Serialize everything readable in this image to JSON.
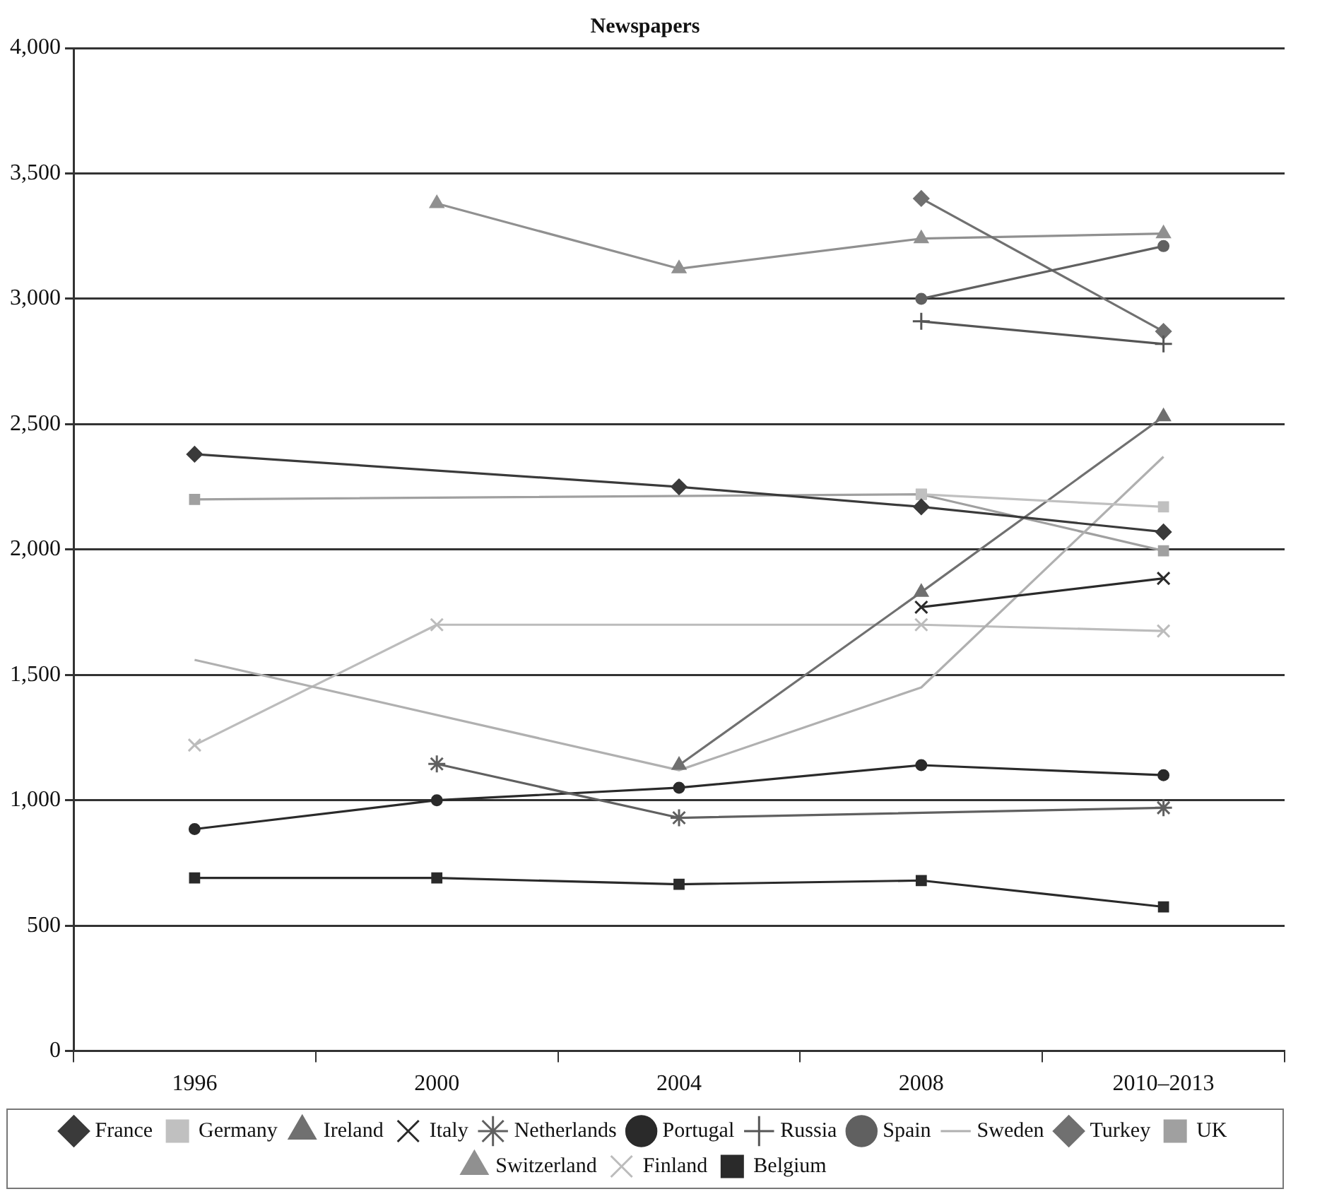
{
  "chart_data": {
    "type": "line",
    "title": "Newspapers",
    "categories": [
      "1996",
      "2000",
      "2004",
      "2008",
      "2010–2013"
    ],
    "ylim": [
      0,
      4000
    ],
    "yticks": [
      {
        "value": 0,
        "label": "0"
      },
      {
        "value": 500,
        "label": "500"
      },
      {
        "value": 1000,
        "label": "1,000"
      },
      {
        "value": 1500,
        "label": "1,500"
      },
      {
        "value": 2000,
        "label": "2,000"
      },
      {
        "value": 2500,
        "label": "2,500"
      },
      {
        "value": 3000,
        "label": "3,000"
      },
      {
        "value": 3500,
        "label": "3,500"
      },
      {
        "value": 4000,
        "label": "4,000"
      }
    ],
    "grid": "y",
    "legend": "bottom",
    "series": [
      {
        "name": "France",
        "color": "#3a3a3a",
        "marker": "diamond",
        "values": [
          2380,
          null,
          2250,
          2170,
          2070
        ]
      },
      {
        "name": "Germany",
        "color": "#c0c0c0",
        "marker": "square",
        "values": [
          null,
          null,
          null,
          2220,
          2170
        ]
      },
      {
        "name": "Ireland",
        "color": "#707070",
        "marker": "triangle",
        "values": [
          null,
          null,
          1140,
          1830,
          2530
        ]
      },
      {
        "name": "Italy",
        "color": "#2a2a2a",
        "marker": "x",
        "values": [
          null,
          null,
          null,
          1770,
          1885
        ]
      },
      {
        "name": "Netherlands",
        "color": "#606060",
        "marker": "cross",
        "values": [
          null,
          1145,
          930,
          null,
          970
        ]
      },
      {
        "name": "Portugal",
        "color": "#2a2a2a",
        "marker": "circle",
        "values": [
          885,
          1000,
          1050,
          1140,
          1100
        ]
      },
      {
        "name": "Russia",
        "color": "#555555",
        "marker": "plus",
        "values": [
          null,
          null,
          null,
          2910,
          2820
        ]
      },
      {
        "name": "Spain",
        "color": "#606060",
        "marker": "circle",
        "values": [
          null,
          null,
          null,
          3000,
          3210
        ]
      },
      {
        "name": "Sweden",
        "color": "#b0b0b0",
        "marker": "none",
        "values": [
          1560,
          null,
          1120,
          1450,
          2370
        ]
      },
      {
        "name": "Turkey",
        "color": "#707070",
        "marker": "diamond",
        "values": [
          null,
          null,
          null,
          3400,
          2870
        ]
      },
      {
        "name": "UK",
        "color": "#a0a0a0",
        "marker": "square",
        "values": [
          2200,
          null,
          null,
          2220,
          1995
        ]
      },
      {
        "name": "Switzerland",
        "color": "#909090",
        "marker": "triangle",
        "values": [
          null,
          3380,
          3120,
          3240,
          3260
        ]
      },
      {
        "name": "Finland",
        "color": "#bcbcbc",
        "marker": "x",
        "values": [
          1220,
          1700,
          null,
          1700,
          1675
        ]
      },
      {
        "name": "Belgium",
        "color": "#2a2a2a",
        "marker": "square",
        "values": [
          690,
          690,
          665,
          680,
          575
        ]
      }
    ]
  }
}
